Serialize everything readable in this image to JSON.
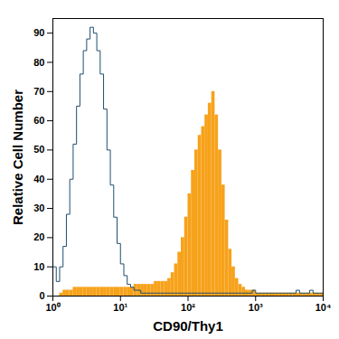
{
  "chart_data": {
    "type": "histogram",
    "x_label": "CD90/Thy1",
    "y_label": "Relative Cell Number",
    "log": "x",
    "xlim": [
      1,
      10000
    ],
    "xticks": [
      {
        "value": 1,
        "label": "10⁰"
      },
      {
        "value": 10,
        "label": "10¹"
      },
      {
        "value": 100,
        "label": "10²"
      },
      {
        "value": 1000,
        "label": "10³"
      },
      {
        "value": 10000,
        "label": "10⁴"
      }
    ],
    "ylim": [
      0,
      95
    ],
    "yticks": [
      0,
      10,
      20,
      30,
      40,
      50,
      60,
      70,
      80,
      90
    ],
    "bins": [
      1,
      1.122,
      1.259,
      1.413,
      1.585,
      1.778,
      1.995,
      2.239,
      2.512,
      2.818,
      3.162,
      3.548,
      3.981,
      4.467,
      5.012,
      5.623,
      6.31,
      7.079,
      7.943,
      8.913,
      10,
      11.22,
      12.59,
      14.13,
      15.85,
      17.78,
      19.95,
      22.39,
      25.12,
      28.18,
      31.62,
      35.48,
      39.81,
      44.67,
      50.12,
      56.23,
      63.1,
      70.79,
      79.43,
      89.13,
      100,
      112.2,
      125.9,
      141.3,
      158.5,
      177.8,
      199.5,
      223.9,
      251.2,
      281.8,
      316.2,
      354.8,
      398.1,
      446.7,
      501.2,
      562.3,
      631,
      707.9,
      794.3,
      891.3,
      1000,
      1122,
      1259,
      1413,
      1585,
      1778,
      1995,
      2239,
      2512,
      2818,
      3162,
      3548,
      3981,
      4467,
      5012,
      5623,
      6310,
      7079,
      7943,
      8913,
      10000
    ],
    "series": [
      {
        "type": "bar",
        "color": "#f7a21b",
        "values": [
          0,
          0,
          1,
          2,
          2,
          2,
          3,
          3,
          3,
          3,
          3,
          3,
          3,
          3,
          3,
          3,
          3,
          3,
          3,
          3,
          3,
          3,
          3,
          3,
          4,
          4,
          4,
          4,
          4,
          4,
          5,
          5,
          5,
          5,
          6,
          8,
          11,
          15,
          20,
          27,
          35,
          43,
          50,
          55,
          58,
          62,
          66,
          70,
          62,
          50,
          38,
          26,
          16,
          10,
          6,
          4,
          3,
          2,
          2,
          2,
          1,
          1,
          1,
          1,
          1,
          1,
          1,
          1,
          1,
          1,
          1,
          1,
          1,
          1,
          1,
          1,
          1,
          1,
          1,
          1
        ]
      },
      {
        "type": "step",
        "color": "#1f4e6e",
        "values": [
          10,
          5,
          10,
          17,
          28,
          40,
          52,
          65,
          76,
          84,
          88,
          92,
          90,
          84,
          76,
          64,
          50,
          38,
          27,
          18,
          11,
          7,
          4,
          3,
          2,
          2,
          1,
          1,
          1,
          1,
          1,
          1,
          1,
          1,
          1,
          1,
          1,
          1,
          1,
          1,
          1,
          1,
          1,
          1,
          1,
          1,
          1,
          1,
          1,
          1,
          1,
          1,
          1,
          1,
          1,
          1,
          1,
          1,
          1,
          2,
          1,
          1,
          1,
          1,
          1,
          1,
          1,
          1,
          1,
          1,
          1,
          1,
          2,
          1,
          1,
          1,
          2,
          1,
          1,
          1
        ]
      }
    ]
  }
}
